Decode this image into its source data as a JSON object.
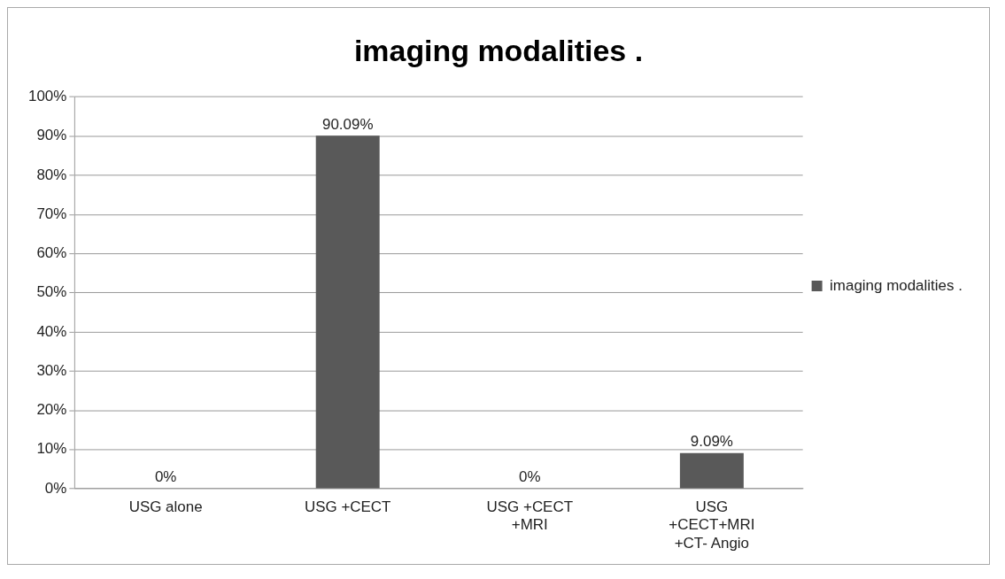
{
  "chart_data": {
    "type": "bar",
    "title": "imaging modalities .",
    "categories": [
      "USG alone",
      "USG +CECT",
      "USG +CECT +MRI",
      "USG +CECT+MRI +CT- Angio"
    ],
    "series": [
      {
        "name": "imaging modalities .",
        "color": "#595959",
        "values": [
          0,
          90.09,
          0,
          9.09
        ],
        "value_labels": [
          "0%",
          "90.09%",
          "0%",
          "9.09%"
        ]
      }
    ],
    "ylim": [
      0,
      100
    ],
    "yticks": [
      {
        "value": 0,
        "label": "0%"
      },
      {
        "value": 10,
        "label": "10%"
      },
      {
        "value": 20,
        "label": "20%"
      },
      {
        "value": 30,
        "label": "30%"
      },
      {
        "value": 40,
        "label": "40%"
      },
      {
        "value": 50,
        "label": "50%"
      },
      {
        "value": 60,
        "label": "60%"
      },
      {
        "value": 70,
        "label": "70%"
      },
      {
        "value": 80,
        "label": "80%"
      },
      {
        "value": 90,
        "label": "90%"
      },
      {
        "value": 100,
        "label": "100%"
      }
    ],
    "grid": "y",
    "legend": "right"
  }
}
